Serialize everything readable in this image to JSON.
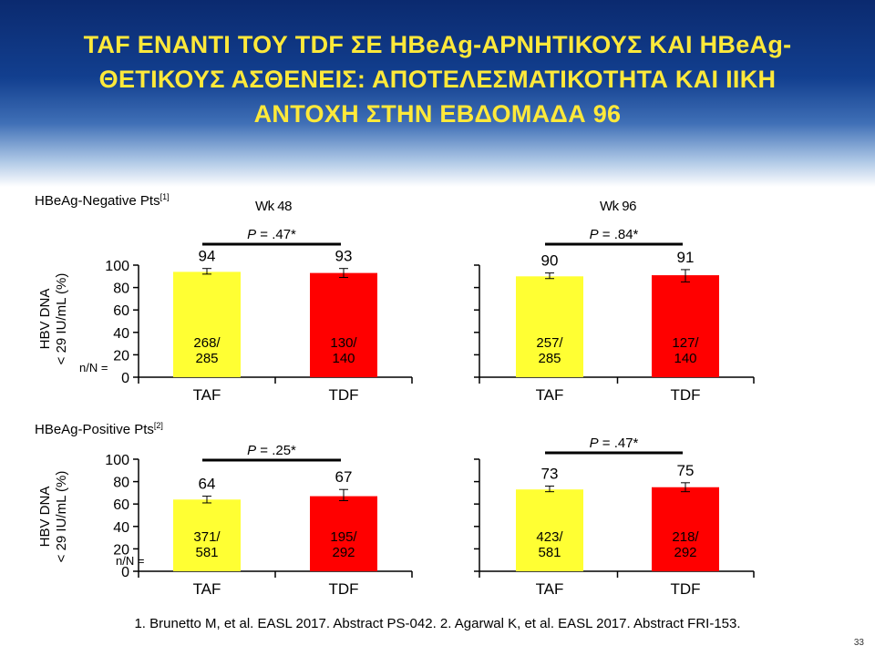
{
  "slide": {
    "title_lines": [
      "TAF ΕΝΑΝΤΙ ΤΟΥ TDF ΣΕ HBeAg-ΑΡΝΗΤΙΚΟΥΣ ΚΑΙ HBeAg-",
      "ΘΕΤΙΚΟΥΣ ΑΣΘΕΝΕΙΣ: ΑΠΟΤΕΛΕΣΜΑΤΙΚΟΤΗΤΑ ΚΑΙ ΙΙΚΗ",
      "ΑΝΤΟΧΗ ΣΤΗΝ ΕΒΔΟΜΑΔΑ 96"
    ],
    "footnote": "1. Brunetto M, et al. EASL 2017. Abstract PS-042. 2. Agarwal K, et al. EASL 2017. Abstract FRI-153.",
    "page_number": "33"
  },
  "labels": {
    "row_negative": "HBeAg-Negative Pts",
    "row_negative_ref": "[1]",
    "row_positive": "HBeAg-Positive Pts",
    "row_positive_ref": "[2]",
    "col_wk48": "Wk 48",
    "col_wk96": "Wk 96",
    "ylabel_line1": "HBV DNA",
    "ylabel_line2": "< 29 IU/mL (%)",
    "nN": "n/N ="
  },
  "colors": {
    "taf": "#ffff33",
    "tdf": "#ff0000",
    "title": "#ffe93a"
  },
  "chart_data": [
    {
      "type": "bar",
      "panel": "HBeAg-Negative Pts, Wk 48",
      "categories": [
        "TAF",
        "TDF"
      ],
      "values": [
        94,
        93
      ],
      "nN": [
        "268/\n285",
        "130/\n140"
      ],
      "p_value": "P = .47*",
      "ylim": [
        0,
        100
      ],
      "yticks": [
        0,
        20,
        40,
        60,
        80,
        100
      ],
      "show_ytick_labels": true,
      "error": [
        [
          92,
          97
        ],
        [
          89,
          97
        ]
      ]
    },
    {
      "type": "bar",
      "panel": "HBeAg-Negative Pts, Wk 96",
      "categories": [
        "TAF",
        "TDF"
      ],
      "values": [
        90,
        91
      ],
      "nN": [
        "257/\n285",
        "127/\n140"
      ],
      "p_value": "P = .84*",
      "ylim": [
        0,
        100
      ],
      "yticks": [
        0,
        20,
        40,
        60,
        80,
        100
      ],
      "show_ytick_labels": false,
      "error": [
        [
          88,
          93
        ],
        [
          85,
          96
        ]
      ]
    },
    {
      "type": "bar",
      "panel": "HBeAg-Positive Pts, Wk 48",
      "categories": [
        "TAF",
        "TDF"
      ],
      "values": [
        64,
        67
      ],
      "nN": [
        "371/\n581",
        "195/\n292"
      ],
      "p_value": "P = .25*",
      "ylim": [
        0,
        100
      ],
      "yticks": [
        0,
        20,
        40,
        60,
        80,
        100
      ],
      "show_ytick_labels": true,
      "error": [
        [
          61,
          67
        ],
        [
          63,
          73
        ]
      ]
    },
    {
      "type": "bar",
      "panel": "HBeAg-Positive Pts, Wk 96",
      "categories": [
        "TAF",
        "TDF"
      ],
      "values": [
        73,
        75
      ],
      "nN": [
        "423/\n581",
        "218/\n292"
      ],
      "p_value": "P = .47*",
      "ylim": [
        0,
        100
      ],
      "yticks": [
        0,
        20,
        40,
        60,
        80,
        100
      ],
      "show_ytick_labels": false,
      "error": [
        [
          71,
          76
        ],
        [
          71,
          79
        ]
      ]
    }
  ]
}
